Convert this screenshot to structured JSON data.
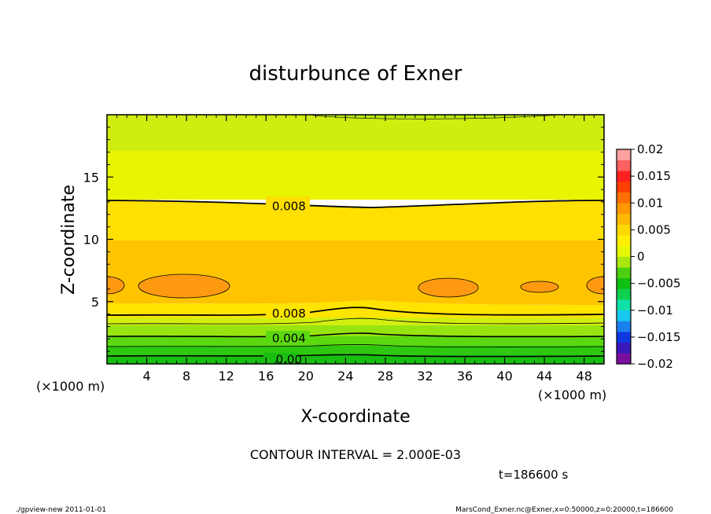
{
  "chart_data": {
    "type": "contour",
    "title": "disturbunce of Exner",
    "xlabel": "X-coordinate",
    "ylabel": "Z-coordinate",
    "xunit": "(×1000 m)",
    "yunit": "(×1000 m)",
    "xlim": [
      0,
      50
    ],
    "ylim": [
      0,
      20
    ],
    "x_ticks": [
      4,
      8,
      12,
      16,
      20,
      24,
      28,
      32,
      36,
      40,
      44,
      48
    ],
    "y_ticks": [
      5,
      10,
      15
    ],
    "colorbar": {
      "ticks": [
        "0.02",
        "0.015",
        "0.01",
        "0.005",
        "0",
        "−0.005",
        "−0.01",
        "−0.015",
        "−0.02"
      ],
      "range": [
        -0.02,
        0.02
      ],
      "colors": [
        "#7a0fa0",
        "#3a18b8",
        "#1038e0",
        "#1a80f0",
        "#18c8f0",
        "#10e0a8",
        "#10d050",
        "#10c010",
        "#4cd010",
        "#a8e810",
        "#e6f800",
        "#fff000",
        "#ffd800",
        "#ffb800",
        "#ff9800",
        "#ff7000",
        "#ff4000",
        "#ff2020",
        "#ff6060",
        "#ffa0a0"
      ]
    },
    "contour_labels": [
      {
        "text": "0.008",
        "x": 18.3,
        "z": 12.7
      },
      {
        "text": "0.008",
        "x": 18.3,
        "z": 4.1
      },
      {
        "text": "0.004",
        "x": 18.3,
        "z": 2.1
      },
      {
        "text": "0.00",
        "x": 18.3,
        "z": 0.4
      }
    ],
    "annotations": {
      "interval": "CONTOUR INTERVAL = 2.000E-03",
      "time": "t=186600 s",
      "footer_left": "./gpview-new   2011-01-01",
      "footer_right": "MarsCond_Exner.nc@Exner,x=0:50000,z=0:20000,t=186600"
    }
  }
}
